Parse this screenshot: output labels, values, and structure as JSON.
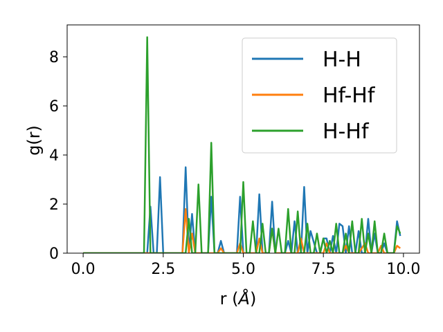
{
  "chart_data": {
    "type": "line",
    "title": "",
    "xlabel": "r (",
    "xlabel_symbol": "Å",
    "xlabel_close": ")",
    "ylabel": "g(r)",
    "xlim": [
      -0.5,
      10.5
    ],
    "ylim": [
      0,
      9.3
    ],
    "xticks": [
      0.0,
      2.5,
      5.0,
      7.5,
      10.0
    ],
    "xtick_labels": [
      "0.0",
      "2.5",
      "5.0",
      "7.5",
      "10.0"
    ],
    "yticks": [
      0,
      2,
      4,
      6,
      8
    ],
    "ytick_labels": [
      "0",
      "2",
      "4",
      "6",
      "8"
    ],
    "grid": false,
    "legend_position": "top-right",
    "series": [
      {
        "name": "H-H",
        "color": "#1f77b4",
        "x": [
          0.0,
          1.9,
          2.0,
          2.1,
          2.2,
          2.3,
          2.4,
          2.5,
          2.6,
          3.1,
          3.2,
          3.3,
          3.4,
          3.5,
          3.9,
          4.0,
          4.1,
          4.2,
          4.3,
          4.4,
          4.8,
          4.9,
          5.0,
          5.1,
          5.3,
          5.4,
          5.5,
          5.6,
          5.8,
          5.9,
          6.0,
          6.2,
          6.3,
          6.4,
          6.5,
          6.6,
          6.7,
          6.8,
          6.9,
          7.0,
          7.1,
          7.3,
          7.4,
          7.5,
          7.6,
          7.7,
          7.8,
          7.9,
          8.0,
          8.1,
          8.2,
          8.3,
          8.4,
          8.5,
          8.6,
          8.7,
          8.8,
          8.9,
          9.0,
          9.1,
          9.2,
          9.3,
          9.4,
          9.5,
          9.6,
          9.7,
          9.8,
          9.9
        ],
        "y": [
          0,
          0,
          0,
          1.9,
          0,
          0,
          3.1,
          0,
          0,
          0,
          3.5,
          0,
          1.6,
          0,
          0,
          2.3,
          0,
          0,
          0.5,
          0,
          0,
          2.3,
          0,
          0,
          0,
          0,
          2.4,
          0,
          0,
          2.1,
          0,
          0,
          0,
          0.5,
          0,
          1.3,
          0,
          0,
          2.7,
          0,
          0.9,
          0,
          0,
          0.6,
          0.6,
          0,
          0.7,
          0,
          1.2,
          1.1,
          0,
          1.1,
          0,
          0,
          0.9,
          0,
          0,
          1.4,
          0,
          0.8,
          0,
          0,
          0.4,
          0,
          0,
          0,
          1.3,
          0.7
        ]
      },
      {
        "name": "Hf-Hf",
        "color": "#ff7f0e",
        "x": [
          0.0,
          3.1,
          3.2,
          3.3,
          3.4,
          3.5,
          4.2,
          4.3,
          4.4,
          4.8,
          4.9,
          5.0,
          5.4,
          5.5,
          5.6,
          5.8,
          5.9,
          6.0,
          6.7,
          6.8,
          6.9,
          7.0,
          7.5,
          7.6,
          7.7,
          8.1,
          8.2,
          8.3,
          8.6,
          8.7,
          8.8,
          8.9,
          9.0,
          9.2,
          9.3,
          9.4,
          9.6,
          9.7,
          9.8,
          9.9
        ],
        "y": [
          0,
          0,
          1.8,
          0,
          0.8,
          0,
          0,
          0.2,
          0,
          0,
          0.4,
          0,
          0,
          0.6,
          0,
          0,
          1.0,
          0,
          0,
          0.6,
          0,
          0,
          0,
          0.4,
          0,
          0,
          0.3,
          0,
          0,
          0.2,
          0.4,
          0,
          0,
          0,
          0.3,
          0,
          0,
          0,
          0.3,
          0.2
        ]
      },
      {
        "name": "H-Hf",
        "color": "#2ca02c",
        "x": [
          0.0,
          1.9,
          2.0,
          2.1,
          2.2,
          2.3,
          3.2,
          3.3,
          3.4,
          3.5,
          3.6,
          3.7,
          3.9,
          4.0,
          4.1,
          4.8,
          4.9,
          5.0,
          5.1,
          5.2,
          5.3,
          5.4,
          5.5,
          5.6,
          5.7,
          5.8,
          5.9,
          6.0,
          6.1,
          6.2,
          6.3,
          6.4,
          6.5,
          6.6,
          6.7,
          6.8,
          6.9,
          7.0,
          7.1,
          7.2,
          7.3,
          7.4,
          7.5,
          7.6,
          7.7,
          7.8,
          7.9,
          8.0,
          8.1,
          8.2,
          8.3,
          8.4,
          8.5,
          8.6,
          8.7,
          8.8,
          8.9,
          9.0,
          9.1,
          9.2,
          9.3,
          9.4,
          9.5,
          9.6,
          9.7,
          9.8,
          9.9
        ],
        "y": [
          0,
          0,
          8.8,
          0,
          0,
          0,
          0,
          1.4,
          0,
          0,
          2.8,
          0,
          0,
          4.5,
          0,
          0,
          0,
          2.9,
          0,
          0,
          1.3,
          0,
          0,
          1.2,
          0,
          0,
          1.0,
          0,
          1.0,
          0,
          0,
          1.8,
          0,
          0,
          1.7,
          0,
          0,
          1.2,
          0,
          0,
          0.8,
          0,
          0.6,
          0,
          0.5,
          0,
          1.2,
          0,
          0,
          0.8,
          0,
          1.3,
          0,
          0,
          1.4,
          0,
          0.8,
          0,
          1.3,
          0,
          0,
          0.8,
          0,
          0,
          0,
          1.1,
          0.8
        ]
      }
    ]
  }
}
